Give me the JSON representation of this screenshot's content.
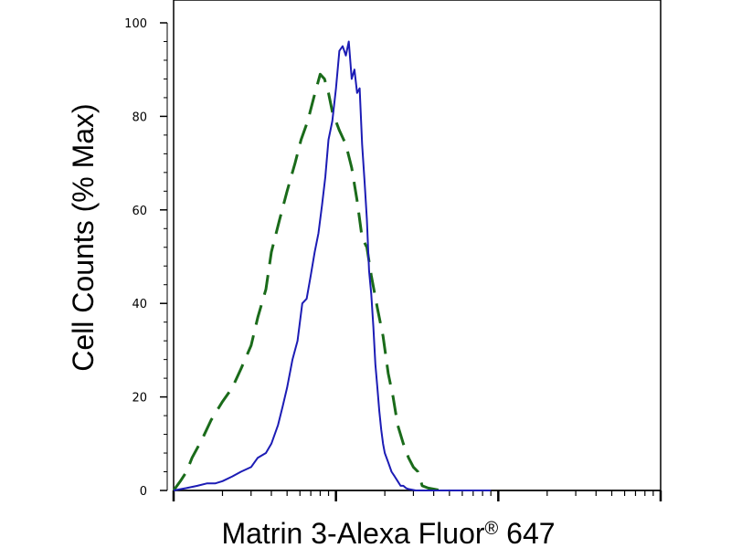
{
  "chart_data": {
    "type": "line",
    "xlabel": "Matrin 3-Alexa Fluor",
    "xlabel_mark": "®",
    "xlabel_suffix": " 647",
    "ylabel": "Cell Counts (% Max)",
    "x_scale": "log",
    "xlim": [
      1,
      1000
    ],
    "ylim": [
      0,
      100
    ],
    "yticks": [
      {
        "value": 0,
        "label": "0"
      },
      {
        "value": 20,
        "label": "20"
      },
      {
        "value": 40,
        "label": "40"
      },
      {
        "value": 60,
        "label": "60"
      },
      {
        "value": 80,
        "label": "80"
      },
      {
        "value": 100,
        "label": "100"
      }
    ],
    "grid": false,
    "series": [
      {
        "color": "#1a6b1a",
        "style": "dashed",
        "x": [
          1.0,
          1.1,
          1.2,
          1.3,
          1.5,
          1.7,
          2.0,
          2.3,
          2.6,
          3.0,
          3.3,
          3.7,
          4.0,
          4.5,
          5.0,
          5.6,
          6.1,
          6.7,
          7.3,
          8.0,
          8.5,
          9.0,
          9.5,
          10.5,
          11.5,
          12.5,
          13.5,
          14.5,
          15.5,
          16.5,
          18.0,
          19.5,
          21.0,
          22.5,
          24.0,
          26.0,
          28.0,
          30.0,
          32.0,
          34.0,
          37.0,
          40.0,
          43.0,
          46.0,
          50.0
        ],
        "y": [
          0,
          2,
          4,
          7,
          11,
          15,
          19,
          22,
          26,
          31,
          37,
          43,
          51,
          58,
          64,
          70,
          75,
          79,
          84,
          89,
          88,
          85,
          81,
          77,
          74,
          69,
          62,
          54,
          52,
          46,
          39,
          33,
          25,
          20,
          14,
          10,
          7,
          5,
          4,
          1,
          0.5,
          0.3,
          0.1,
          0,
          0
        ]
      },
      {
        "color": "#1c1cb5",
        "style": "solid",
        "x": [
          1.0,
          1.2,
          1.4,
          1.6,
          1.8,
          2.0,
          2.3,
          2.6,
          3.0,
          3.3,
          3.7,
          4.0,
          4.4,
          4.7,
          5.0,
          5.4,
          5.8,
          6.2,
          6.6,
          7.0,
          7.4,
          7.8,
          8.2,
          8.6,
          9.0,
          9.5,
          10.0,
          10.5,
          11.0,
          11.5,
          12.0,
          12.5,
          13.0,
          13.5,
          14.0,
          14.5,
          15.0,
          15.5,
          16.0,
          16.5,
          17.0,
          17.5,
          18.0,
          18.5,
          19.0,
          19.5,
          20.0,
          21.0,
          22.0,
          23.0,
          24.0,
          25.0,
          26.0,
          27.0,
          28.0,
          29.0,
          30.0,
          31.0,
          32.0,
          34.0,
          37.0,
          40.0,
          45.0,
          55.0,
          70.0,
          90.0
        ],
        "y": [
          0,
          0.5,
          1,
          1.5,
          1.5,
          2,
          3,
          4,
          5,
          7,
          8,
          10,
          14,
          18,
          22,
          28,
          32,
          40,
          41,
          46,
          51,
          55,
          61,
          67,
          75,
          79,
          86,
          94,
          95,
          93,
          96,
          88,
          90,
          85,
          86,
          74,
          66,
          58,
          47,
          42,
          35,
          27,
          22,
          17,
          13,
          10,
          8,
          6,
          4,
          3,
          2,
          1,
          1,
          0.5,
          0.3,
          0.2,
          0.1,
          0,
          0,
          0,
          0,
          0,
          0,
          0,
          0,
          0
        ]
      }
    ]
  }
}
